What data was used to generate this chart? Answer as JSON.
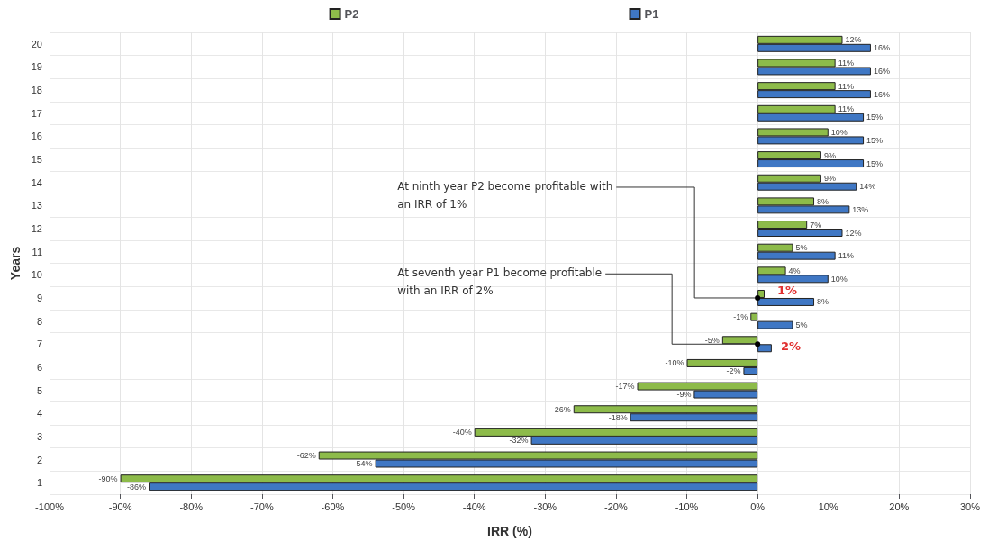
{
  "chart_data": {
    "type": "bar",
    "orientation": "horizontal",
    "xlabel": "IRR (%)",
    "ylabel": "Years",
    "categories": [
      "20",
      "19",
      "18",
      "17",
      "16",
      "15",
      "14",
      "13",
      "12",
      "11",
      "10",
      "9",
      "8",
      "7",
      "6",
      "5",
      "4",
      "3",
      "2",
      "1"
    ],
    "series": [
      {
        "name": "P2",
        "color": "#8dbb4a",
        "values": [
          12,
          11,
          11,
          11,
          10,
          9,
          9,
          8,
          7,
          5,
          4,
          1,
          -1,
          -5,
          -10,
          -17,
          -26,
          -40,
          -62,
          -90
        ],
        "value_labels": [
          "12%",
          "11%",
          "11%",
          "11%",
          "10%",
          "9%",
          "9%",
          "8%",
          "7%",
          "5%",
          "4%",
          null,
          "-1%",
          "-5%",
          "-10%",
          "-17%",
          "-26%",
          "-40%",
          "-62%",
          "-90%"
        ]
      },
      {
        "name": "P1",
        "color": "#3f77c4",
        "values": [
          16,
          16,
          16,
          15,
          15,
          15,
          14,
          13,
          12,
          11,
          10,
          8,
          5,
          2,
          -2,
          -9,
          -18,
          -32,
          -54,
          -86
        ],
        "value_labels": [
          "16%",
          "16%",
          "16%",
          "15%",
          "15%",
          "15%",
          "14%",
          "13%",
          "12%",
          "11%",
          "10%",
          "8%",
          "5%",
          null,
          "-2%",
          "-9%",
          "-18%",
          "-32%",
          "-54%",
          "-86%"
        ]
      }
    ],
    "xlim": [
      -100,
      30
    ],
    "xticks": [
      {
        "value": -100,
        "label": "-100%"
      },
      {
        "value": -90,
        "label": "-90%"
      },
      {
        "value": -80,
        "label": "-80%"
      },
      {
        "value": -70,
        "label": "-70%"
      },
      {
        "value": -60,
        "label": "-60%"
      },
      {
        "value": -50,
        "label": "-50%"
      },
      {
        "value": -40,
        "label": "-40%"
      },
      {
        "value": -30,
        "label": "-30%"
      },
      {
        "value": -20,
        "label": "-20%"
      },
      {
        "value": -10,
        "label": "-10%"
      },
      {
        "value": 0,
        "label": "0%"
      },
      {
        "value": 10,
        "label": "10%"
      },
      {
        "value": 20,
        "label": "20%"
      },
      {
        "value": 30,
        "label": "30%"
      }
    ],
    "annotations": [
      {
        "text": "At ninth year P2 become profitable with an IRR of 1%",
        "x": 0,
        "y": "9"
      },
      {
        "text": "At seventh year P1 become profitable with an IRR of 2%",
        "x": 0,
        "y": "7"
      },
      {
        "text": "1%",
        "x": 1,
        "y": "9"
      },
      {
        "text": "2%",
        "x": 2,
        "y": "7"
      }
    ],
    "grid": true,
    "legend": "top"
  }
}
